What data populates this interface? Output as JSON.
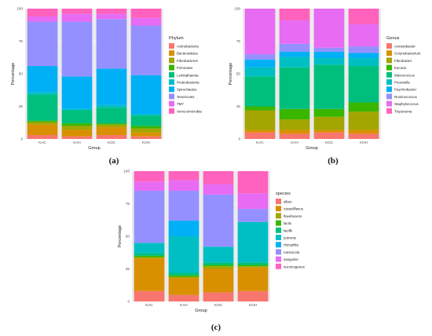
{
  "chart_data": [
    {
      "panel_label": "(a)",
      "type": "bar",
      "stacked": true,
      "xlabel": "Group",
      "ylabel": "Percentage",
      "ylim": [
        0,
        100
      ],
      "yticks": [
        "0",
        "25",
        "50",
        "75",
        "100"
      ],
      "categories": [
        "KAC",
        "KAH",
        "KOC",
        "KOH"
      ],
      "legend_title": "Phylum",
      "legend_position": "right",
      "grid": true,
      "series": [
        {
          "name": "Actinobacteria",
          "color": "#F8766D",
          "values": [
            3,
            2,
            3,
            2
          ]
        },
        {
          "name": "Bacteroidetes",
          "color": "#D89000",
          "values": [
            8,
            5,
            6,
            3
          ]
        },
        {
          "name": "Fibrobacteres",
          "color": "#A3A500",
          "values": [
            2,
            3,
            2,
            3
          ]
        },
        {
          "name": "Firmicutes",
          "color": "#39B600",
          "values": [
            1,
            2,
            1,
            2
          ]
        },
        {
          "name": "Lentisphaerae",
          "color": "#00BF7D",
          "values": [
            20,
            10,
            12,
            8
          ]
        },
        {
          "name": "Proteobacteria",
          "color": "#00BFC4",
          "values": [
            2,
            1,
            2,
            1
          ]
        },
        {
          "name": "Spirochaetes",
          "color": "#00B0F6",
          "values": [
            20,
            25,
            28,
            30
          ]
        },
        {
          "name": "Tenericutes",
          "color": "#9590FF",
          "values": [
            34,
            42,
            38,
            38
          ]
        },
        {
          "name": "TM7",
          "color": "#E76BF3",
          "values": [
            4,
            6,
            4,
            6
          ]
        },
        {
          "name": "Verrucomicrobia",
          "color": "#FF62BC",
          "values": [
            6,
            4,
            4,
            7
          ]
        }
      ]
    },
    {
      "panel_label": "(b)",
      "type": "bar",
      "stacked": true,
      "xlabel": "Group",
      "ylabel": "Percentage",
      "ylim": [
        0,
        100
      ],
      "yticks": [
        "0",
        "25",
        "50",
        "75",
        "100"
      ],
      "categories": [
        "KAC",
        "KAH",
        "KOC",
        "KOH"
      ],
      "legend_title": "Genus",
      "legend_position": "right",
      "grid": true,
      "series": [
        {
          "name": "Acinetobacter",
          "color": "#F8766D",
          "values": [
            5,
            4,
            5,
            4
          ]
        },
        {
          "name": "Corynebacterium",
          "color": "#D89000",
          "values": [
            2,
            3,
            2,
            3
          ]
        },
        {
          "name": "Fibrobacter",
          "color": "#A3A500",
          "values": [
            15,
            8,
            10,
            14
          ]
        },
        {
          "name": "Kocuria",
          "color": "#39B600",
          "values": [
            3,
            8,
            6,
            7
          ]
        },
        {
          "name": "Macrococcus",
          "color": "#00BF7D",
          "values": [
            23,
            32,
            34,
            28
          ]
        },
        {
          "name": "Prevotella",
          "color": "#00BFC4",
          "values": [
            7,
            8,
            5,
            6
          ]
        },
        {
          "name": "Psychrobacter",
          "color": "#00B0F6",
          "values": [
            6,
            4,
            5,
            4
          ]
        },
        {
          "name": "Ruminococcus",
          "color": "#9590FF",
          "values": [
            4,
            6,
            3,
            5
          ]
        },
        {
          "name": "Staphylococcus",
          "color": "#E76BF3",
          "values": [
            35,
            18,
            30,
            17
          ]
        },
        {
          "name": "Treponema",
          "color": "#FF62BC",
          "values": [
            0,
            9,
            0,
            12
          ]
        }
      ]
    },
    {
      "panel_label": "(c)",
      "type": "bar",
      "stacked": true,
      "xlabel": "Group",
      "ylabel": "Percentage",
      "ylim": [
        0,
        100
      ],
      "yticks": [
        "0",
        "25",
        "50",
        "75",
        "100"
      ],
      "categories": [
        "KAC",
        "KAH",
        "KOC",
        "KOH"
      ],
      "legend_title": "species",
      "legend_position": "right",
      "grid": true,
      "series": [
        {
          "name": "albus",
          "color": "#F8766D",
          "values": [
            8,
            5,
            7,
            8
          ]
        },
        {
          "name": "casseliflavus",
          "color": "#D89000",
          "values": [
            25,
            13,
            18,
            18
          ]
        },
        {
          "name": "flavefaciens",
          "color": "#A3A500",
          "values": [
            1,
            1,
            2,
            1
          ]
        },
        {
          "name": "lactis",
          "color": "#39B600",
          "values": [
            1,
            1,
            1,
            1
          ]
        },
        {
          "name": "lwoffii",
          "color": "#00BF7D",
          "values": [
            2,
            2,
            2,
            2
          ]
        },
        {
          "name": "putrenia",
          "color": "#00BFC4",
          "values": [
            8,
            28,
            12,
            31
          ]
        },
        {
          "name": "rhizophila",
          "color": "#00B0F6",
          "values": [
            0,
            12,
            0,
            0
          ]
        },
        {
          "name": "ruminicola",
          "color": "#9590FF",
          "values": [
            40,
            23,
            40,
            10
          ]
        },
        {
          "name": "sanguinis",
          "color": "#E76BF3",
          "values": [
            7,
            8,
            8,
            12
          ]
        },
        {
          "name": "succinogenes",
          "color": "#FF62BC",
          "values": [
            8,
            7,
            10,
            17
          ]
        }
      ]
    }
  ]
}
